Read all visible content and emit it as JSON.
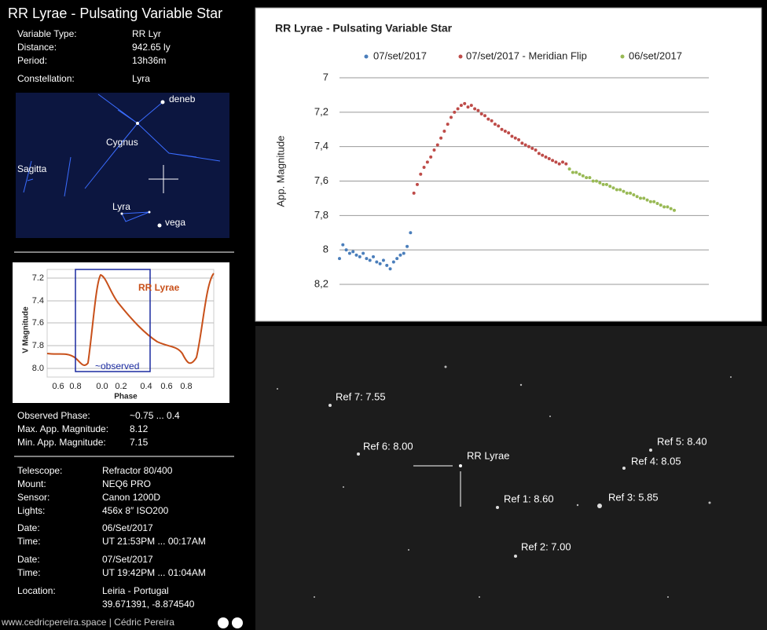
{
  "title": "RR Lyrae - Pulsating Variable Star",
  "info": [
    [
      "Variable Type:",
      "RR Lyr"
    ],
    [
      "Distance:",
      "942.65 ly"
    ],
    [
      "Period:",
      "13h36m"
    ],
    [
      "Constellation:",
      "Lyra"
    ]
  ],
  "sky_map": {
    "labels": [
      "deneb",
      "Cygnus",
      "Sagitta",
      "Lyra",
      "vega"
    ]
  },
  "phase_chart": {
    "title": "RR Lyrae",
    "y_label": "V Magnitude",
    "x_label": "Phase",
    "yticks": [
      "7.2",
      "7.4",
      "7.6",
      "7.8",
      "8.0"
    ],
    "xticks": [
      "0.6",
      "0.8",
      "0.0",
      "0.2",
      "0.4",
      "0.6",
      "0.8"
    ],
    "annotation": "~observed"
  },
  "observed": [
    [
      "Observed Phase:",
      "~0.75 ... 0.4"
    ],
    [
      "Max. App. Magnitude:",
      "8.12"
    ],
    [
      "Min. App. Magnitude:",
      "7.15"
    ]
  ],
  "equipment": [
    [
      "Telescope:",
      "Refractor 80/400"
    ],
    [
      "Mount:",
      "NEQ6 PRO"
    ],
    [
      "Sensor:",
      "Canon 1200D"
    ],
    [
      "Lights:",
      "456x 8″     ISO200"
    ]
  ],
  "schedule": [
    [
      "Date:",
      "06/Set/2017"
    ],
    [
      "Time:",
      "UT 21:53PM ... 00:17AM"
    ],
    [
      "Date:",
      "07/Set/2017"
    ],
    [
      "Time:",
      "UT 19:42PM ... 01:04AM"
    ]
  ],
  "location": [
    "Location:",
    "Leiria - Portugal",
    "39.671391, -8.874540"
  ],
  "footer": "www.cedricpereira.space | Cédric Pereira",
  "chart_data": {
    "type": "scatter",
    "title": "RR Lyrae - Pulsating Variable Star",
    "y_label": "App. Magnitude",
    "ylim": [
      8.2,
      7
    ],
    "yticks": [
      7,
      {
        "value": 7.2,
        "label": "7,2"
      },
      {
        "value": 7.4,
        "label": "7,4"
      },
      {
        "value": 7.6,
        "label": "7,6"
      },
      {
        "value": 7.8,
        "label": "7,8"
      },
      8,
      {
        "value": 8.2,
        "label": "8,2"
      }
    ],
    "grid": true,
    "series": [
      {
        "name": "07/set/2017",
        "color": "#4a7ebb",
        "values": [
          8.05,
          7.97,
          8.0,
          8.02,
          8.01,
          8.03,
          8.04,
          8.02,
          8.05,
          8.06,
          8.04,
          8.07,
          8.08,
          8.06,
          8.09,
          8.11,
          8.07,
          8.05,
          8.03,
          8.02,
          7.98,
          7.9
        ]
      },
      {
        "name": "07/set/2017 - Meridian Flip",
        "color": "#be4b48",
        "values": [
          7.67,
          7.62,
          7.56,
          7.52,
          7.49,
          7.46,
          7.42,
          7.39,
          7.35,
          7.31,
          7.27,
          7.23,
          7.2,
          7.18,
          7.16,
          7.15,
          7.17,
          7.16,
          7.18,
          7.19,
          7.21,
          7.22,
          7.24,
          7.25,
          7.27,
          7.28,
          7.3,
          7.31,
          7.32,
          7.34,
          7.35,
          7.36,
          7.38,
          7.39,
          7.4,
          7.41,
          7.42,
          7.44,
          7.45,
          7.46,
          7.47,
          7.48,
          7.49,
          7.5,
          7.49,
          7.5
        ]
      },
      {
        "name": "06/set/2017",
        "color": "#98b954",
        "values": [
          7.53,
          7.55,
          7.55,
          7.56,
          7.57,
          7.58,
          7.58,
          7.6,
          7.6,
          7.61,
          7.62,
          7.62,
          7.63,
          7.64,
          7.65,
          7.65,
          7.66,
          7.67,
          7.67,
          7.68,
          7.69,
          7.7,
          7.7,
          7.71,
          7.72,
          7.72,
          7.73,
          7.74,
          7.75,
          7.75,
          7.76,
          7.77
        ]
      }
    ]
  },
  "star_field": {
    "target": "RR Lyrae",
    "refs": [
      "Ref 7:  7.55",
      "Ref 6:  8.00",
      "Ref 5:  8.40",
      "Ref 4:  8.05",
      "Ref 3:  5.85",
      "Ref 1:  8.60",
      "Ref 2:  7.00"
    ]
  }
}
